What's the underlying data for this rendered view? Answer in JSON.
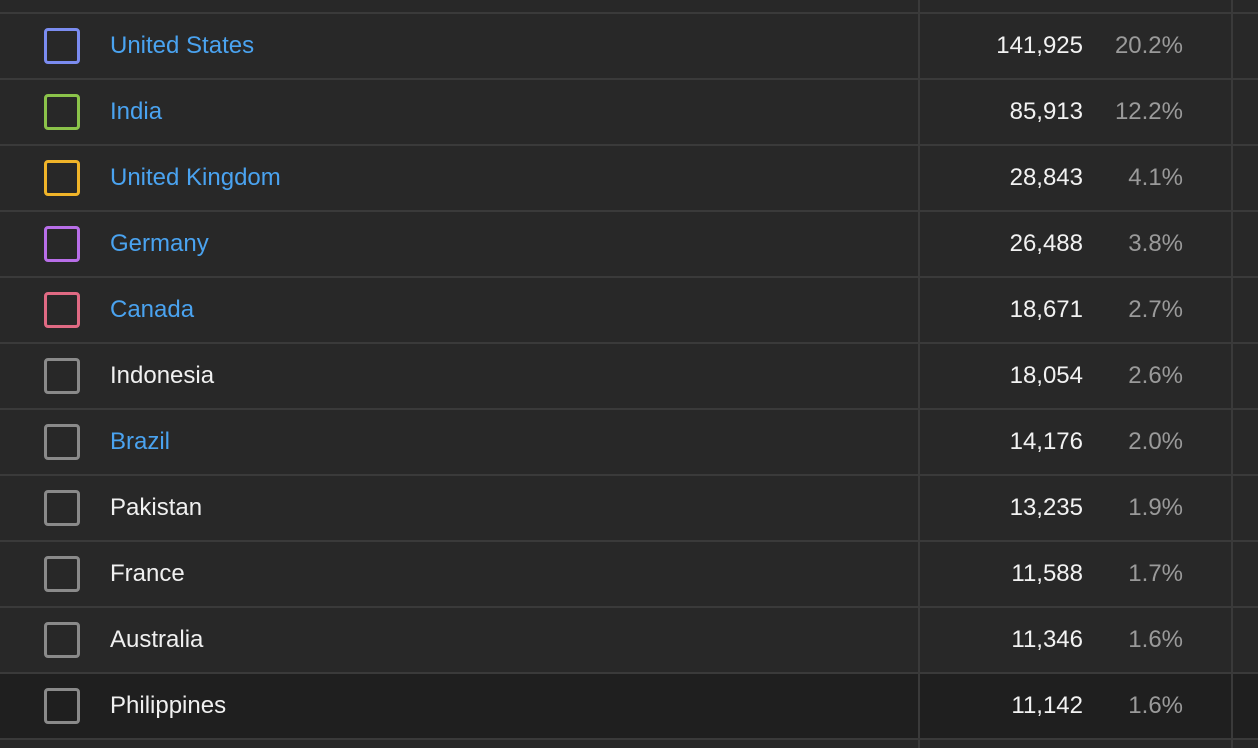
{
  "rows": [
    {
      "country": "United States",
      "value": "141,925",
      "percent": "20.2%",
      "color": "#7b8cf0",
      "link": true
    },
    {
      "country": "India",
      "value": "85,913",
      "percent": "12.2%",
      "color": "#8bc34a",
      "link": true
    },
    {
      "country": "United Kingdom",
      "value": "28,843",
      "percent": "4.1%",
      "color": "#f0b429",
      "link": true
    },
    {
      "country": "Germany",
      "value": "26,488",
      "percent": "3.8%",
      "color": "#b86ee8",
      "link": true
    },
    {
      "country": "Canada",
      "value": "18,671",
      "percent": "2.7%",
      "color": "#e06a83",
      "link": true
    },
    {
      "country": "Indonesia",
      "value": "18,054",
      "percent": "2.6%",
      "color": "#8a8a8a",
      "link": false
    },
    {
      "country": "Brazil",
      "value": "14,176",
      "percent": "2.0%",
      "color": "#8a8a8a",
      "link": true
    },
    {
      "country": "Pakistan",
      "value": "13,235",
      "percent": "1.9%",
      "color": "#8a8a8a",
      "link": false
    },
    {
      "country": "France",
      "value": "11,588",
      "percent": "1.7%",
      "color": "#8a8a8a",
      "link": false
    },
    {
      "country": "Australia",
      "value": "11,346",
      "percent": "1.6%",
      "color": "#8a8a8a",
      "link": false
    },
    {
      "country": "Philippines",
      "value": "11,142",
      "percent": "1.6%",
      "color": "#8a8a8a",
      "link": false
    }
  ]
}
